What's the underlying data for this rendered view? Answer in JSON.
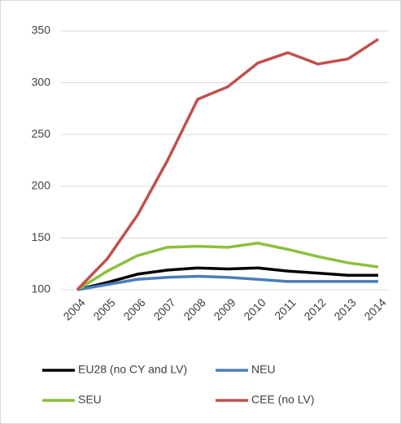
{
  "chart_data": {
    "type": "line",
    "categories": [
      "2004",
      "2005",
      "2006",
      "2007",
      "2008",
      "2009",
      "2010",
      "2011",
      "2012",
      "2013",
      "2014"
    ],
    "series": [
      {
        "name": "EU28 (no CY and LV)",
        "color": "#000000",
        "values": [
          100,
          107,
          115,
          119,
          121,
          120,
          121,
          118,
          116,
          114,
          114
        ]
      },
      {
        "name": "NEU",
        "color": "#4a7ebb",
        "values": [
          100,
          105,
          110,
          112,
          113,
          112,
          110,
          108,
          108,
          108,
          108
        ]
      },
      {
        "name": "SEU",
        "color": "#8cbf3f",
        "values": [
          100,
          118,
          133,
          141,
          142,
          141,
          145,
          139,
          132,
          126,
          122
        ]
      },
      {
        "name": "CEE (no LV)",
        "color": "#c0504d",
        "values": [
          100,
          130,
          172,
          225,
          284,
          296,
          319,
          329,
          318,
          323,
          342
        ]
      }
    ],
    "ylim": [
      100,
      350
    ],
    "yticks": [
      100,
      150,
      200,
      250,
      300,
      350
    ],
    "grid": true,
    "legend": "bottom"
  }
}
